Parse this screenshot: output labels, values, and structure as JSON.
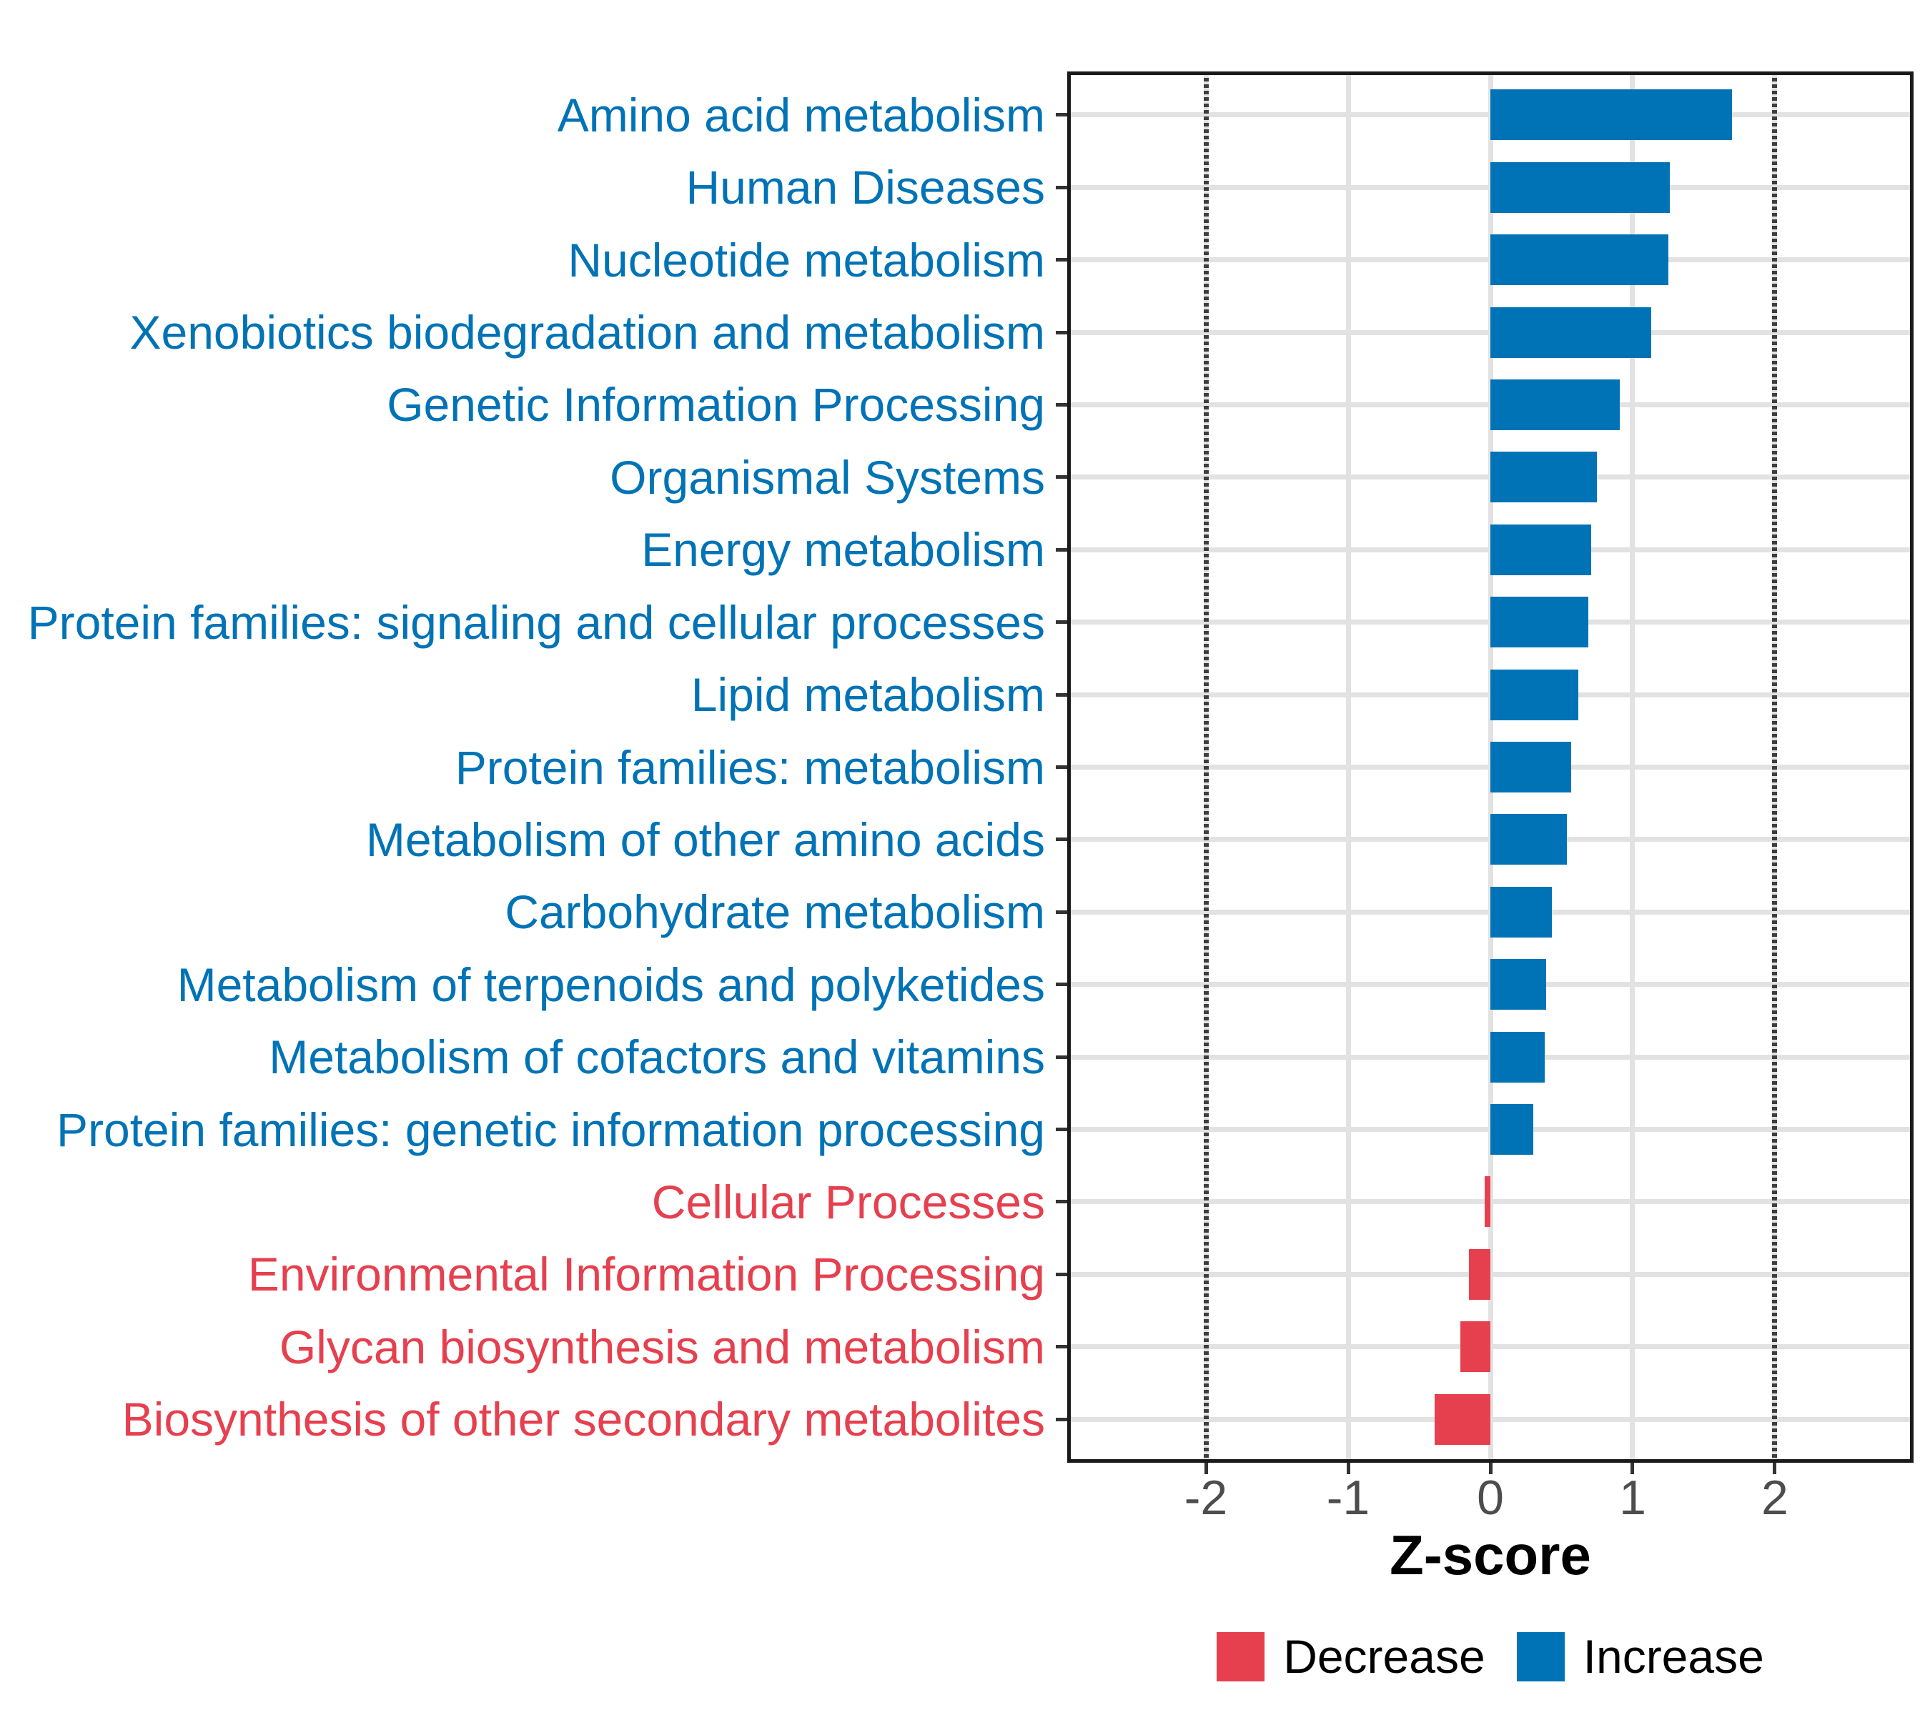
{
  "chart_data": {
    "type": "bar",
    "orientation": "horizontal",
    "xlabel": "Z-score",
    "xlim": [
      -2.975,
      2.975
    ],
    "x_ticks": [
      -2,
      -1,
      0,
      1,
      2
    ],
    "reference_lines_dashed": [
      -2,
      2
    ],
    "grid": "major-only",
    "bars": [
      {
        "label": "Amino acid metabolism",
        "value": 1.7,
        "group": "increase"
      },
      {
        "label": "Human Diseases",
        "value": 1.26,
        "group": "increase"
      },
      {
        "label": "Nucleotide metabolism",
        "value": 1.25,
        "group": "increase"
      },
      {
        "label": "Xenobiotics biodegradation and metabolism",
        "value": 1.13,
        "group": "increase"
      },
      {
        "label": "Genetic Information Processing",
        "value": 0.91,
        "group": "increase"
      },
      {
        "label": "Organismal Systems",
        "value": 0.75,
        "group": "increase"
      },
      {
        "label": "Energy metabolism",
        "value": 0.71,
        "group": "increase"
      },
      {
        "label": "Protein families: signaling and cellular processes",
        "value": 0.69,
        "group": "increase"
      },
      {
        "label": "Lipid metabolism",
        "value": 0.62,
        "group": "increase"
      },
      {
        "label": "Protein families: metabolism",
        "value": 0.57,
        "group": "increase"
      },
      {
        "label": "Metabolism of other amino acids",
        "value": 0.54,
        "group": "increase"
      },
      {
        "label": "Carbohydrate metabolism",
        "value": 0.43,
        "group": "increase"
      },
      {
        "label": "Metabolism of terpenoids and polyketides",
        "value": 0.39,
        "group": "increase"
      },
      {
        "label": "Metabolism of cofactors and vitamins",
        "value": 0.38,
        "group": "increase"
      },
      {
        "label": "Protein families: genetic information processing",
        "value": 0.3,
        "group": "increase"
      },
      {
        "label": "Cellular Processes",
        "value": -0.04,
        "group": "decrease"
      },
      {
        "label": "Environmental Information Processing",
        "value": -0.15,
        "group": "decrease"
      },
      {
        "label": "Glycan biosynthesis and metabolism",
        "value": -0.21,
        "group": "decrease"
      },
      {
        "label": "Biosynthesis of other secondary metabolites",
        "value": -0.39,
        "group": "decrease"
      }
    ],
    "colors": {
      "increase": "#0073B6",
      "decrease": "#E6404F",
      "grid": "#E2E2E2",
      "axis_border": "#1A1A1A",
      "tick_mark": "#333333",
      "tick_text": "#4D4D4D",
      "reference_line": "#3D3D3D"
    },
    "legend": [
      {
        "label": "Decrease",
        "color_key": "decrease"
      },
      {
        "label": "Increase",
        "color_key": "increase"
      }
    ],
    "legend_position": "bottom"
  }
}
